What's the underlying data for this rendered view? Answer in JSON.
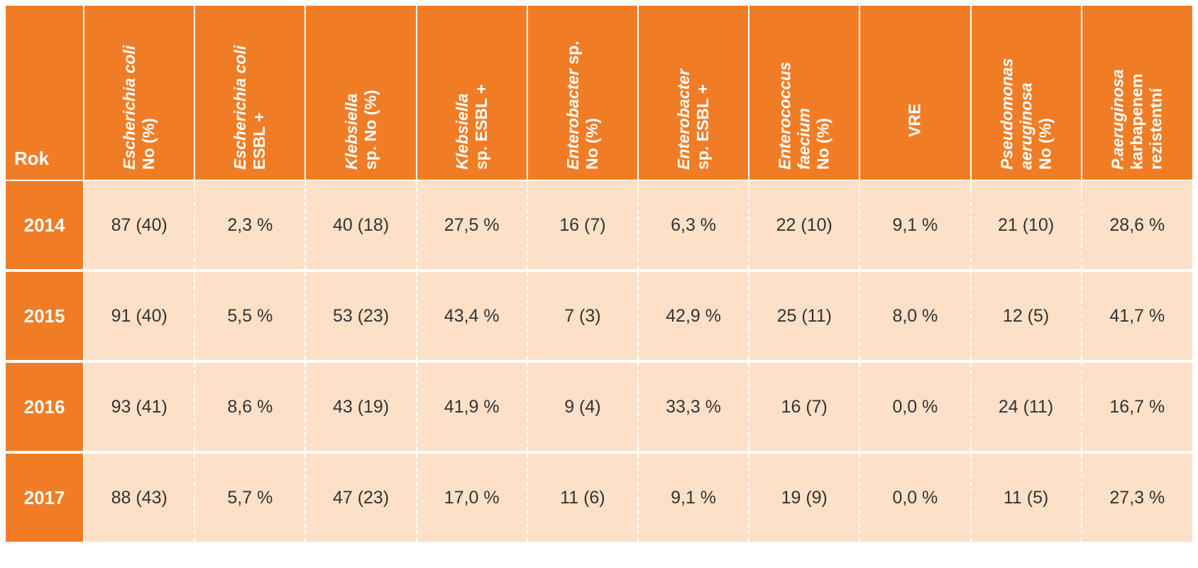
{
  "table": {
    "corner_label": "Rok",
    "columns": [
      {
        "italic": "Escherichia coli",
        "normal": "No (%)"
      },
      {
        "italic": "Escherichia coli",
        "normal": "ESBL +"
      },
      {
        "italic": "Klebsiella",
        "normal": "sp. No (%)"
      },
      {
        "italic": "Klebsiella",
        "normal": "sp. ESBL +"
      },
      {
        "italic": "Enterobacter",
        "normal": "sp.",
        "line2": "No (%)"
      },
      {
        "italic": "Enterobacter",
        "normal": "sp. ESBL +"
      },
      {
        "italic": "Enterococcus",
        "italic2": "faecium",
        "normal": "No (%)"
      },
      {
        "normal": "VRE"
      },
      {
        "italic": "Pseudomonas",
        "italic2": "aeruginosa",
        "normal": "No (%)"
      },
      {
        "italic": "P.aeruginosa",
        "normal": "karbapenem",
        "line3": "rezistentní"
      }
    ],
    "rows": [
      {
        "year": "2014",
        "cells": [
          "87 (40)",
          "2,3 %",
          "40 (18)",
          "27,5 %",
          "16 (7)",
          "6,3 %",
          "22 (10)",
          "9,1 %",
          "21 (10)",
          "28,6 %"
        ]
      },
      {
        "year": "2015",
        "cells": [
          "91 (40)",
          "5,5 %",
          "53 (23)",
          "43,4 %",
          "7 (3)",
          "42,9 %",
          "25 (11)",
          "8,0 %",
          "12 (5)",
          "41,7 %"
        ]
      },
      {
        "year": "2016",
        "cells": [
          "93 (41)",
          "8,6 %",
          "43 (19)",
          "41,9 %",
          "9 (4)",
          "33,3 %",
          "16 (7)",
          "0,0 %",
          "24 (11)",
          "16,7 %"
        ]
      },
      {
        "year": "2017",
        "cells": [
          "88 (43)",
          "5,7 %",
          "47 (23)",
          "17,0 %",
          "11 (6)",
          "9,1 %",
          "19 (9)",
          "0,0 %",
          "11 (5)",
          "27,3 %"
        ]
      }
    ]
  },
  "colors": {
    "header_bg": "#f07d26",
    "cell_bg": "#fde0c8",
    "header_text": "#ffffff",
    "cell_text": "#333333"
  }
}
